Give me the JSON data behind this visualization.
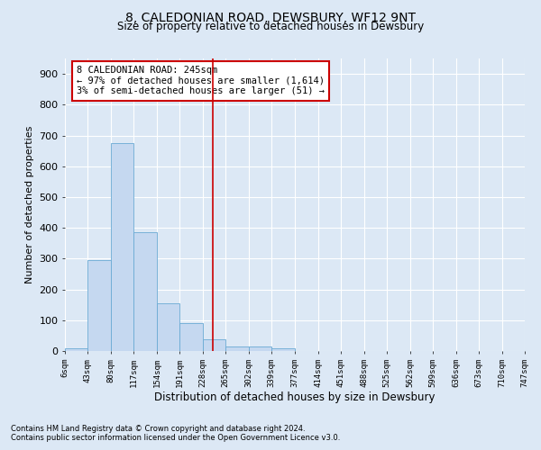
{
  "title": "8, CALEDONIAN ROAD, DEWSBURY, WF12 9NT",
  "subtitle": "Size of property relative to detached houses in Dewsbury",
  "xlabel": "Distribution of detached houses by size in Dewsbury",
  "ylabel": "Number of detached properties",
  "footnote1": "Contains HM Land Registry data © Crown copyright and database right 2024.",
  "footnote2": "Contains public sector information licensed under the Open Government Licence v3.0.",
  "annotation_line1": "8 CALEDONIAN ROAD: 245sqm",
  "annotation_line2": "← 97% of detached houses are smaller (1,614)",
  "annotation_line3": "3% of semi-detached houses are larger (51) →",
  "property_size": 245,
  "bin_edges": [
    6,
    43,
    80,
    117,
    154,
    191,
    228,
    265,
    302,
    339,
    377,
    414,
    451,
    488,
    525,
    562,
    599,
    636,
    673,
    710,
    747
  ],
  "bar_heights": [
    10,
    295,
    675,
    385,
    155,
    90,
    37,
    15,
    15,
    10,
    0,
    0,
    0,
    0,
    0,
    0,
    0,
    0,
    0,
    0
  ],
  "bar_color": "#c5d8f0",
  "bar_edge_color": "#6aaad4",
  "vline_color": "#cc0000",
  "background_color": "#dce8f5",
  "plot_bg_color": "#dce8f5",
  "grid_color": "#ffffff",
  "ylim": [
    0,
    950
  ],
  "yticks": [
    0,
    100,
    200,
    300,
    400,
    500,
    600,
    700,
    800,
    900
  ]
}
